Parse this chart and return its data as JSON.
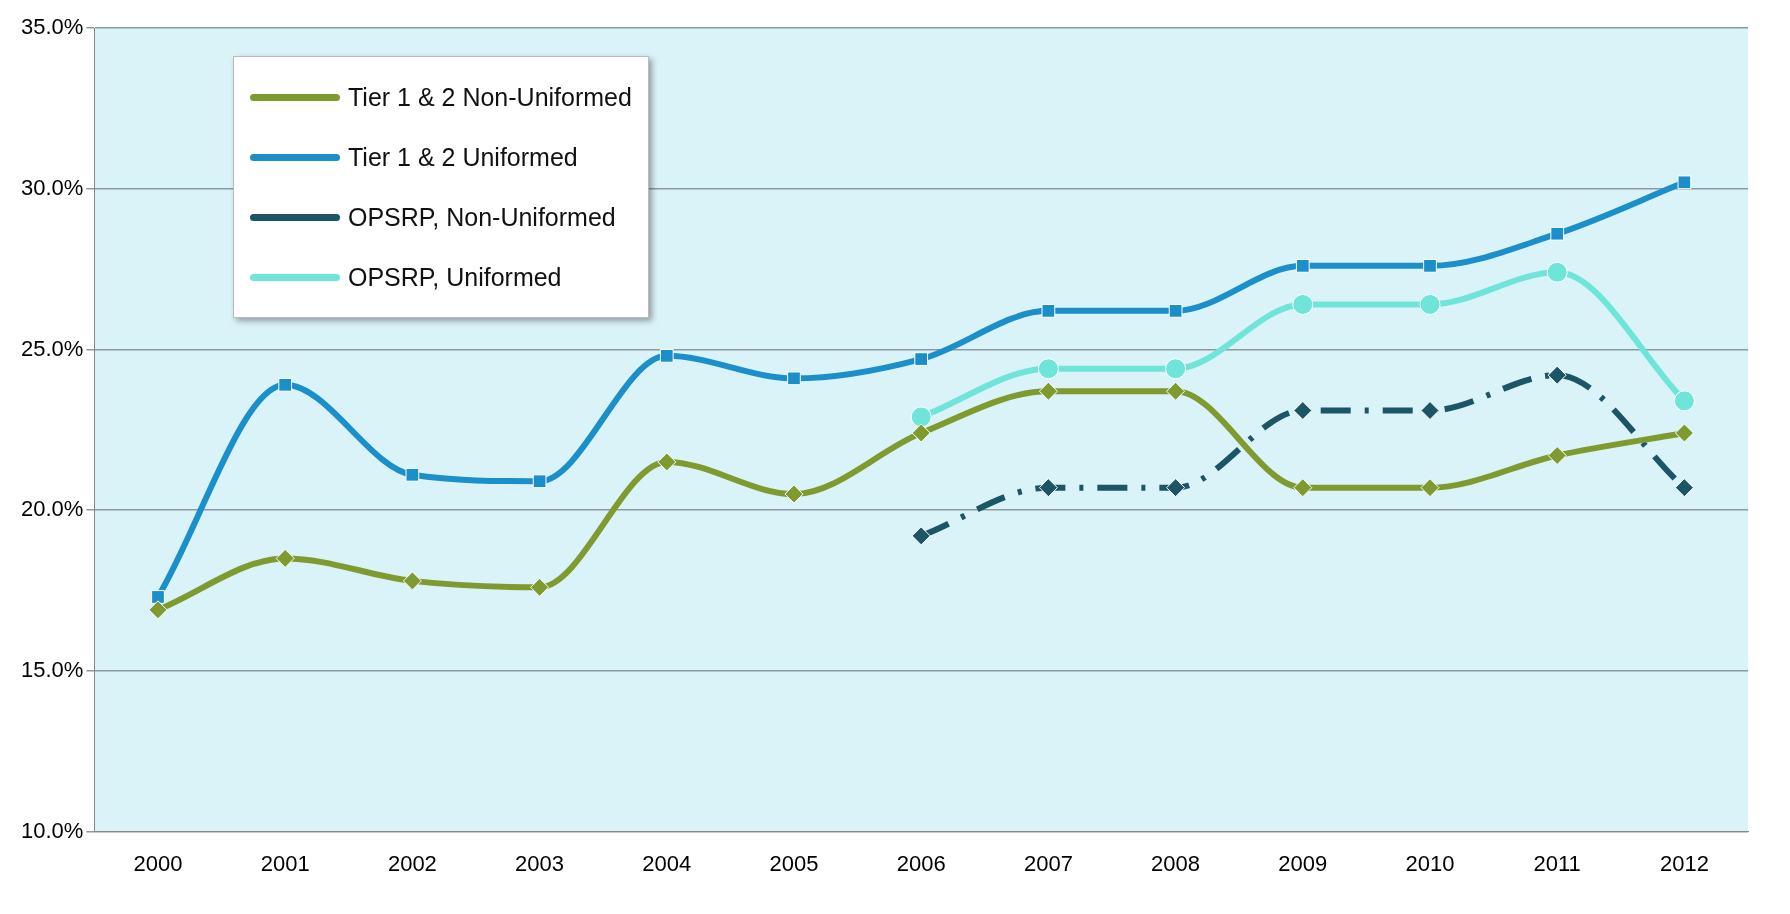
{
  "chart_data": {
    "type": "line",
    "categories": [
      "2000",
      "2001",
      "2002",
      "2003",
      "2004",
      "2005",
      "2006",
      "2007",
      "2008",
      "2009",
      "2010",
      "2011",
      "2012"
    ],
    "series": [
      {
        "name": "Tier 1 & 2 Non-Uniformed",
        "color": "#7f9a2e",
        "marker": "diamond",
        "values": [
          16.9,
          18.5,
          17.8,
          17.6,
          21.5,
          20.5,
          22.4,
          23.7,
          23.7,
          20.7,
          20.7,
          21.7,
          22.4
        ]
      },
      {
        "name": "Tier 1 & 2 Uniformed",
        "color": "#1a8fc9",
        "marker": "square",
        "values": [
          17.3,
          23.9,
          21.1,
          20.9,
          24.8,
          24.1,
          24.7,
          26.2,
          26.2,
          27.6,
          27.6,
          28.6,
          30.2
        ]
      },
      {
        "name": "OPSRP, Non-Uniformed",
        "color": "#1b5566",
        "marker": "diamond",
        "line_style": "dashed",
        "values": [
          null,
          null,
          null,
          null,
          null,
          null,
          19.2,
          20.7,
          20.7,
          23.1,
          23.1,
          24.2,
          20.7
        ]
      },
      {
        "name": "OPSRP, Uniformed",
        "color": "#6fe5d9",
        "marker": "circle",
        "values": [
          null,
          null,
          null,
          null,
          null,
          null,
          22.9,
          24.4,
          24.4,
          26.4,
          26.4,
          27.4,
          23.4
        ]
      }
    ],
    "ylim": [
      10,
      35
    ],
    "yticks": [
      {
        "value": 10,
        "label": "10.0%"
      },
      {
        "value": 15,
        "label": "15.0%"
      },
      {
        "value": 20,
        "label": "20.0%"
      },
      {
        "value": 25,
        "label": "25.0%"
      },
      {
        "value": 30,
        "label": "30.0%"
      },
      {
        "value": 35,
        "label": "35.0%"
      }
    ],
    "grid": "y",
    "legend": "top left"
  }
}
